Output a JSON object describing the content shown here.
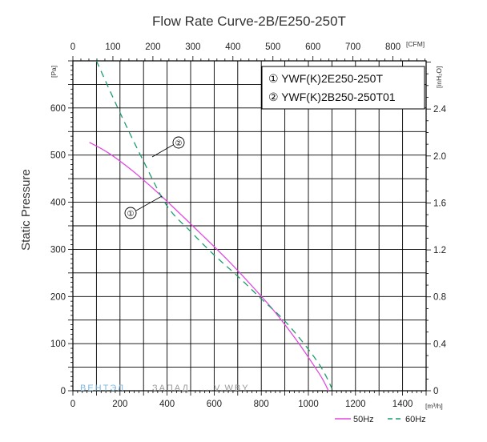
{
  "chart_data": {
    "type": "line",
    "title": "Flow Rate Curve-2B/E250-250T",
    "ylabel": "Static Pressure",
    "x_bottom": {
      "unit": "[m³/h]",
      "ticks": [
        0,
        200,
        400,
        600,
        800,
        1000,
        1200,
        1400
      ],
      "range": [
        0,
        1500
      ]
    },
    "x_top": {
      "unit": "[CFM]",
      "ticks": [
        0,
        100,
        200,
        300,
        400,
        500,
        600,
        700,
        800
      ],
      "range": [
        0,
        882.9
      ]
    },
    "y_left": {
      "unit": "[Pa]",
      "ticks": [
        0,
        100,
        200,
        300,
        400,
        500,
        600
      ],
      "range": [
        0,
        700
      ]
    },
    "y_right": {
      "unit": "[inH₂O]",
      "ticks": [
        "0",
        "0.4",
        "0.8",
        "1.2",
        "1.6",
        "2.0",
        "2.4"
      ]
    },
    "grid": true,
    "legend_position": "top-right",
    "legend": [
      "① YWF(K)2E250-250T",
      "② YWF(K)2B250-250T01"
    ],
    "freq_legend": [
      "50Hz",
      "60Hz"
    ],
    "callouts": [
      "①",
      "②"
    ],
    "colors": {
      "series_50hz": "#e14be0",
      "series_60hz": "#1e9c6a",
      "grid": "#000000"
    },
    "series": [
      {
        "name": "50Hz",
        "style": "solid",
        "x": [
          70,
          150,
          250,
          350,
          450,
          550,
          650,
          750,
          850,
          950,
          1020,
          1060,
          1085
        ],
        "y": [
          527,
          505,
          468,
          425,
          378,
          330,
          281,
          228,
          172,
          107,
          56,
          25,
          0
        ]
      },
      {
        "name": "60Hz",
        "style": "dashed",
        "x": [
          100,
          200,
          300,
          400,
          500,
          600,
          700,
          800,
          900,
          1000,
          1060,
          1100
        ],
        "y": [
          700,
          590,
          487,
          392,
          338,
          288,
          243,
          195,
          148,
          88,
          45,
          5
        ]
      }
    ]
  },
  "watermark": {
    "part1": "ВЕНТЭЛ",
    "part2": "ЗАПАД",
    "part3": "...V.WBY"
  }
}
